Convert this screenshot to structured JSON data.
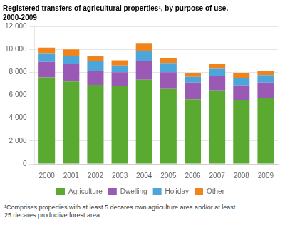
{
  "chart_data": {
    "type": "bar",
    "title": "Registered transfers of agricultural properties¹, by purpose of use.",
    "subtitle": "2000-2009",
    "annotations": [
      "¹Comprises properties with at least 5 decares own agriculture area and/or at least\n25 decares productive forest area."
    ],
    "categories": [
      "2000",
      "2001",
      "2002",
      "2003",
      "2004",
      "2005",
      "2006",
      "2007",
      "2008",
      "2009"
    ],
    "series": [
      {
        "name": "Agriculture",
        "color": "#5aaa32",
        "values": [
          7550,
          7200,
          6900,
          6800,
          7350,
          6550,
          5650,
          6350,
          5600,
          5750
        ]
      },
      {
        "name": "Dwelling",
        "color": "#9b59b6",
        "values": [
          1350,
          1500,
          1250,
          1200,
          1600,
          1450,
          1450,
          1350,
          1250,
          1350
        ]
      },
      {
        "name": "Holiday",
        "color": "#4da6d9",
        "values": [
          700,
          750,
          800,
          600,
          900,
          750,
          500,
          600,
          650,
          650
        ]
      },
      {
        "name": "Other",
        "color": "#f0841a",
        "values": [
          550,
          550,
          450,
          450,
          650,
          500,
          350,
          400,
          450,
          400
        ]
      }
    ],
    "stacked": true,
    "ylim": [
      0,
      12000
    ],
    "yticks": [
      0,
      {
        "value": 2000,
        "label": "2 000"
      },
      {
        "value": 4000,
        "label": "4 000"
      },
      {
        "value": 6000,
        "label": "6 000"
      },
      {
        "value": 8000,
        "label": "8 000"
      },
      {
        "value": 10000,
        "label": "10 000"
      },
      {
        "value": 12000,
        "label": "12 000"
      }
    ],
    "grid": true,
    "legend": "bottom"
  }
}
